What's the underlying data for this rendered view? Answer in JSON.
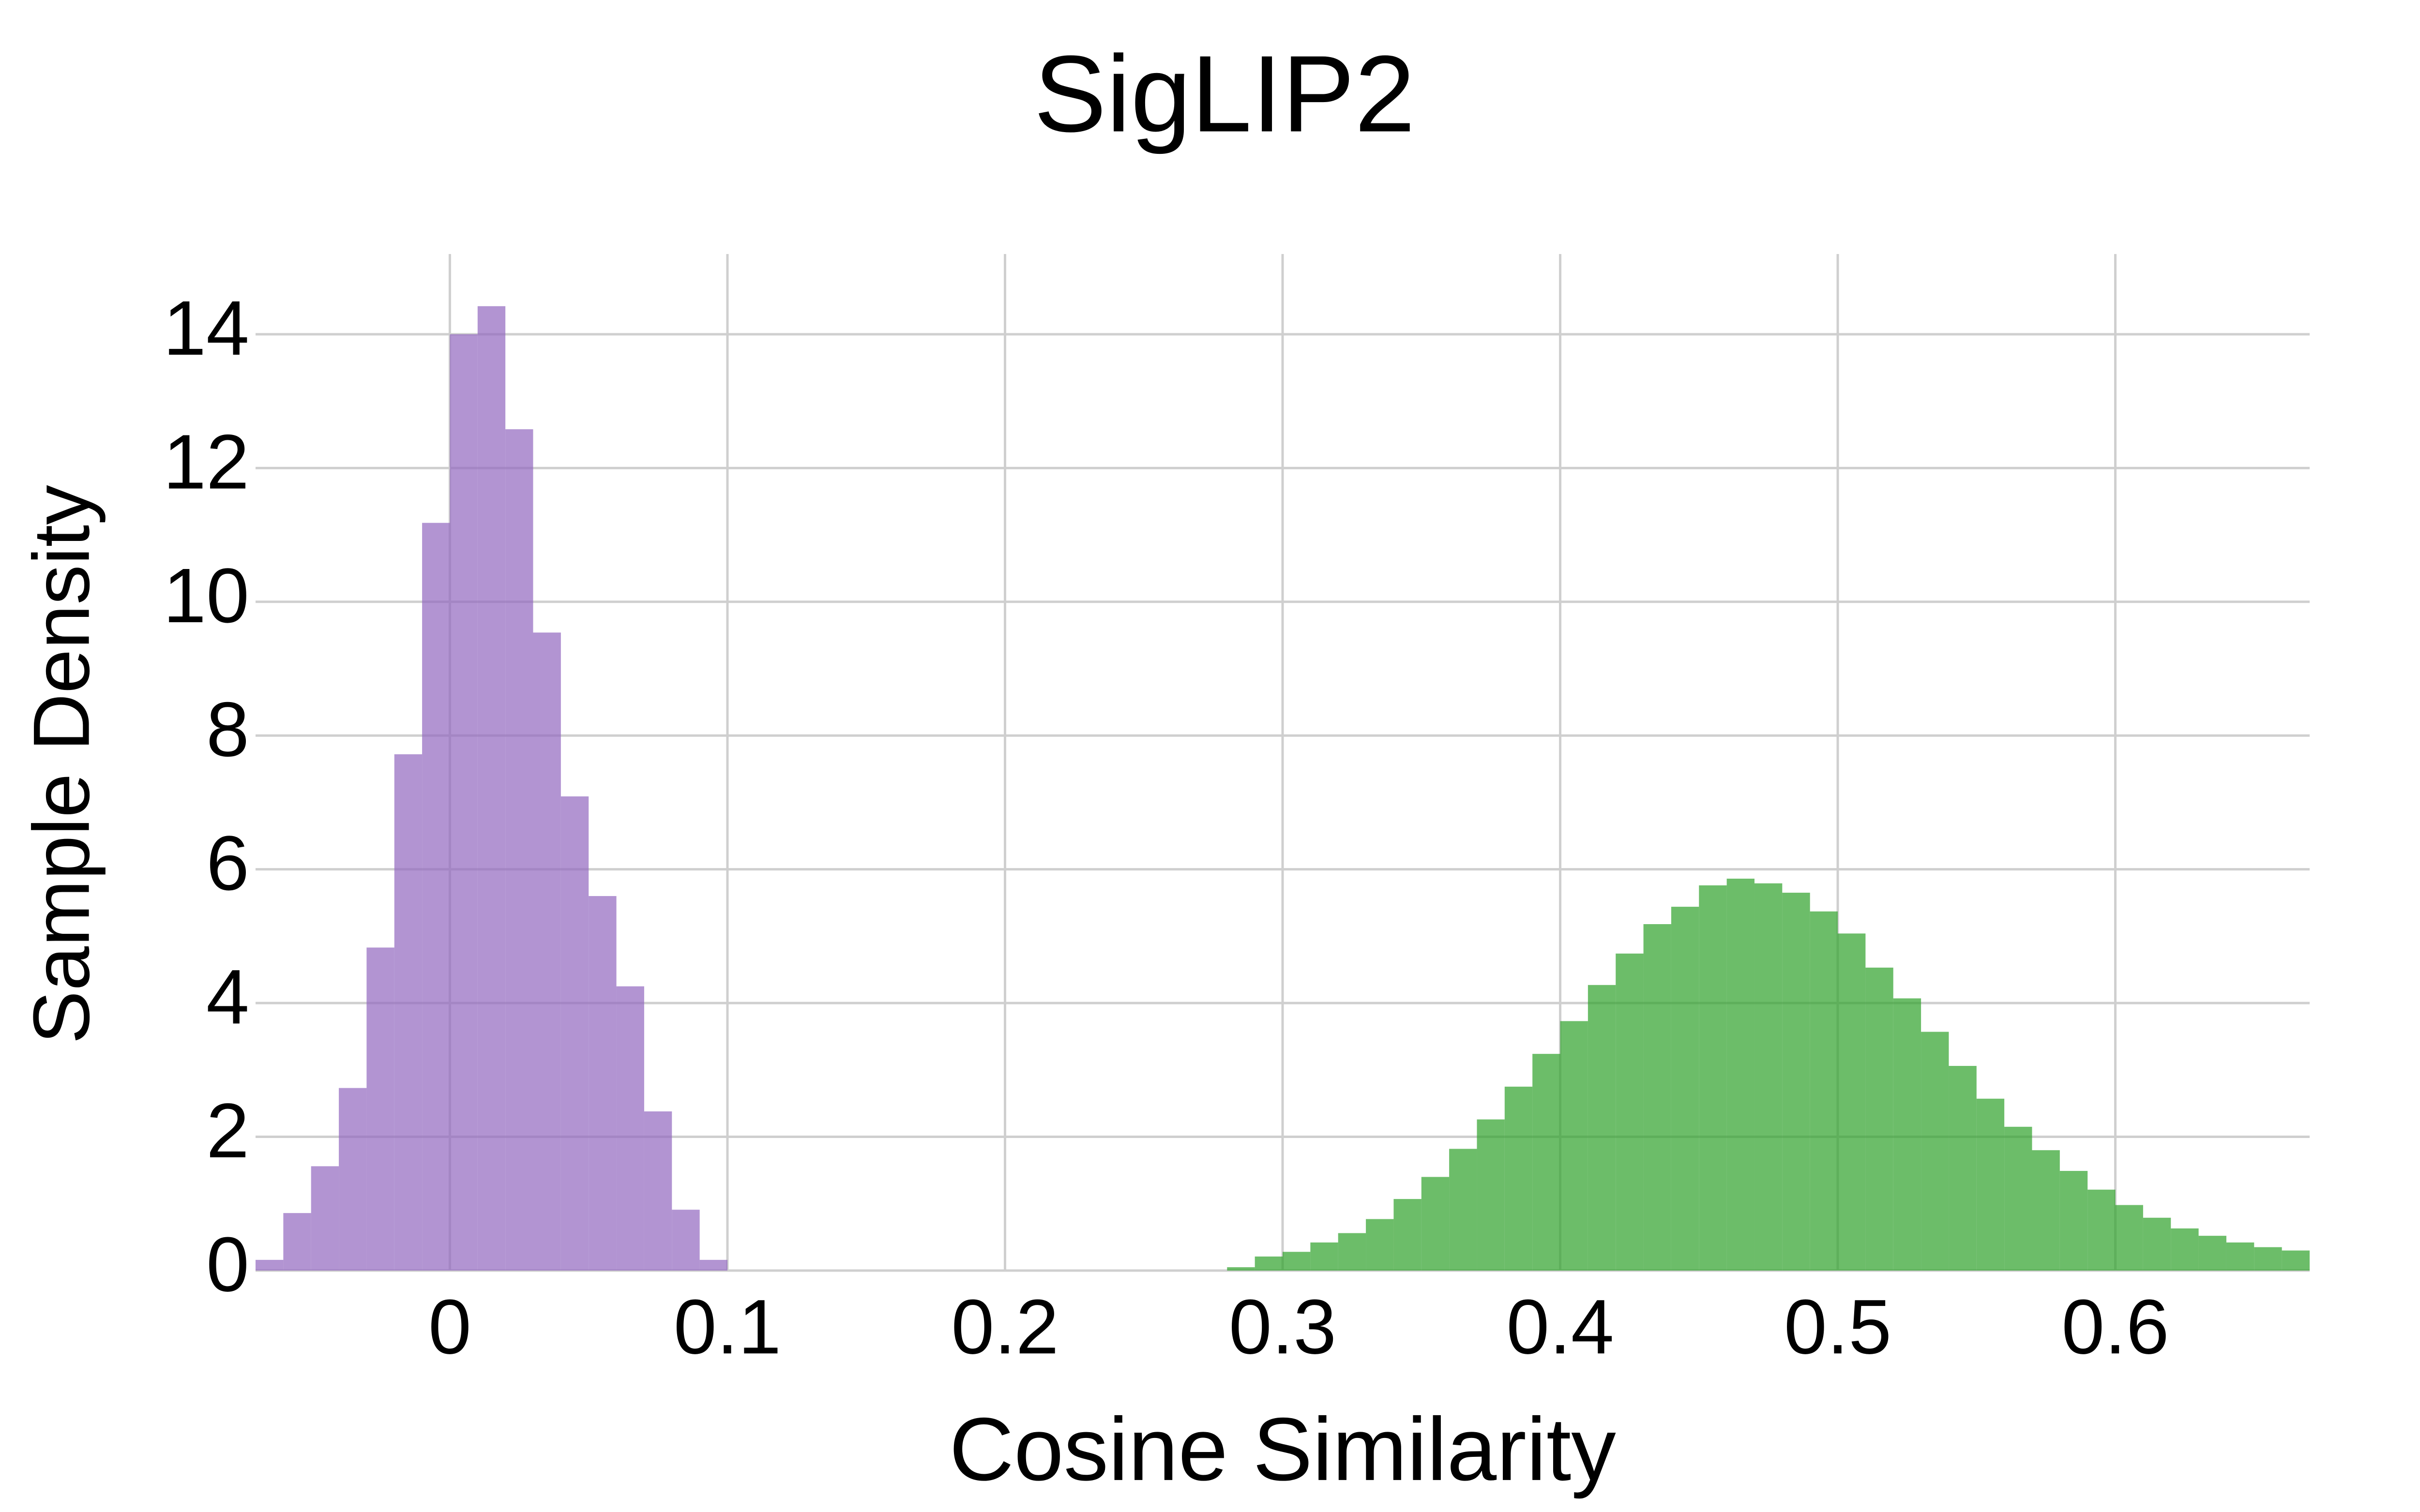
{
  "chart_data": {
    "type": "histogram",
    "title": "SigLIP2",
    "x_label": "Cosine Similarity",
    "y_label": "Sample Density",
    "xlim": [
      -0.07,
      0.67
    ],
    "ylim": [
      0,
      15.2
    ],
    "xticks": [
      0,
      0.1,
      0.2,
      0.3,
      0.4,
      0.5,
      0.6
    ],
    "yticks": [
      0,
      2,
      4,
      6,
      8,
      10,
      12,
      14
    ],
    "grid": true,
    "opacity": 0.7,
    "series": [
      {
        "color": "#9166bf",
        "bins": [
          -0.07,
          -0.06,
          -0.05,
          -0.04,
          -0.03,
          -0.02,
          -0.01,
          0,
          0.01,
          0.02,
          0.03,
          0.04,
          0.05,
          0.06,
          0.07,
          0.08,
          0.09,
          0.1
        ],
        "values": [
          0.16,
          0.86,
          1.56,
          2.73,
          4.83,
          7.72,
          11.18,
          14.0,
          14.42,
          12.58,
          9.54,
          7.09,
          5.6,
          4.25,
          2.38,
          0.91,
          0.16
        ]
      },
      {
        "color": "#2da129",
        "bins": [
          0.28,
          0.29,
          0.3,
          0.31,
          0.32,
          0.33,
          0.34,
          0.35,
          0.36,
          0.37,
          0.38,
          0.39,
          0.4,
          0.41,
          0.42,
          0.43,
          0.44,
          0.45,
          0.46,
          0.47,
          0.48,
          0.49,
          0.5,
          0.51,
          0.52,
          0.53,
          0.54,
          0.55,
          0.56,
          0.57,
          0.58,
          0.59,
          0.6,
          0.61,
          0.62,
          0.63,
          0.64,
          0.65,
          0.66,
          0.67
        ],
        "values": [
          0.05,
          0.21,
          0.28,
          0.42,
          0.56,
          0.77,
          1.07,
          1.4,
          1.82,
          2.26,
          2.75,
          3.24,
          3.73,
          4.27,
          4.74,
          5.18,
          5.44,
          5.76,
          5.86,
          5.79,
          5.65,
          5.37,
          5.04,
          4.53,
          4.07,
          3.57,
          3.06,
          2.57,
          2.15,
          1.8,
          1.49,
          1.21,
          0.98,
          0.79,
          0.63,
          0.52,
          0.42,
          0.35,
          0.3
        ]
      }
    ]
  }
}
